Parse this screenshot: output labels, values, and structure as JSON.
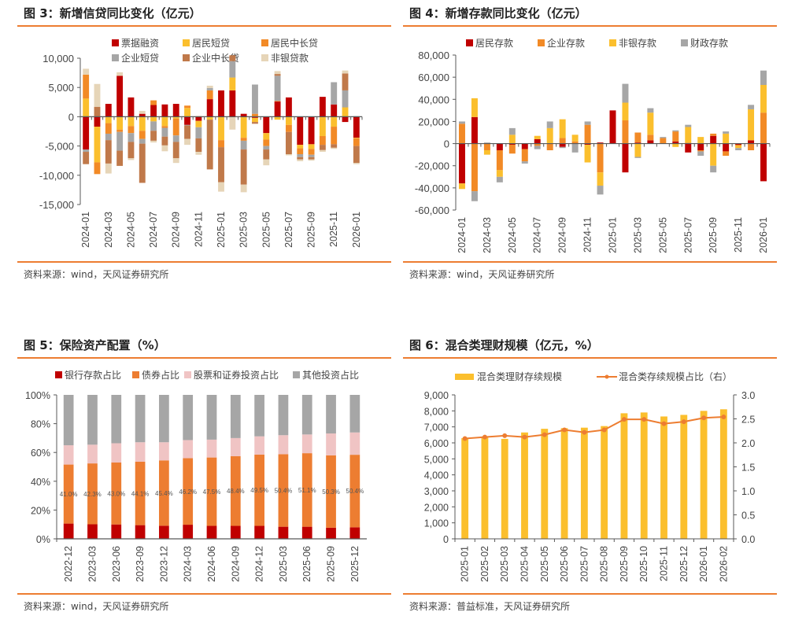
{
  "panels": {
    "p3": {
      "title": "图 3：新增信贷同比变化（亿元）",
      "source": "资料来源：wind，天风证券研究所"
    },
    "p4": {
      "title": "图 4：新增存款同比变化（亿元）",
      "source": "资料来源：wind，天风证券研究所"
    },
    "p5": {
      "title": "图 5：保险资产配置（%）",
      "source": "资料来源：wind，天风证券研究所"
    },
    "p6": {
      "title": "图 6：混合类理财规模（亿元，%）",
      "source": "资料来源：普益标准，天风证券研究所"
    }
  },
  "chart_data": [
    {
      "id": "fig3",
      "type": "bar",
      "stacked": true,
      "title": "新增信贷同比变化（亿元）",
      "ylim": [
        -15000,
        10000
      ],
      "yticks": [
        10000,
        5000,
        0,
        -5000,
        -10000,
        -15000
      ],
      "ytick_labels": [
        "10,000",
        "5,000",
        "0",
        "-5,000",
        "-10,000",
        "-15,000"
      ],
      "categories": [
        "2024-01",
        "2024-02",
        "2024-03",
        "2024-04",
        "2024-05",
        "2024-06",
        "2024-07",
        "2024-08",
        "2024-09",
        "2024-10",
        "2024-11",
        "2024-12",
        "2025-01",
        "2025-02",
        "2025-03",
        "2025-04",
        "2025-05",
        "2025-06",
        "2025-07",
        "2025-08",
        "2025-09",
        "2025-10",
        "2025-11",
        "2025-12",
        "2026-01"
      ],
      "xtick_labels": [
        "2024-01",
        "2024-03",
        "2024-05",
        "2024-07",
        "2024-09",
        "2024-11",
        "2025-01",
        "2025-03",
        "2025-05",
        "2025-07",
        "2025-09",
        "2025-11",
        "2026-01"
      ],
      "legend": "top",
      "series": [
        {
          "name": "票据融资",
          "color": "#c00000",
          "values": [
            -5600,
            -1700,
            2200,
            7000,
            3300,
            500,
            2000,
            2100,
            2200,
            -1400,
            -700,
            3000,
            4500,
            4500,
            500,
            -200,
            -2800,
            2600,
            3300,
            -4800,
            -4700,
            3400,
            2100,
            -900,
            -3600
          ]
        },
        {
          "name": "居民短贷",
          "color": "#fbbf2d",
          "values": [
            3100,
            -6100,
            -1100,
            -2200,
            -1600,
            -2400,
            -800,
            -1600,
            -300,
            1500,
            -1100,
            -500,
            -4000,
            2200,
            -3600,
            -700,
            -1100,
            -500,
            -1400,
            -600,
            -800,
            -3300,
            -1700,
            1600,
            -100
          ]
        },
        {
          "name": "居民中长贷",
          "color": "#f28a26",
          "values": [
            4100,
            -2000,
            -1800,
            -400,
            -1200,
            -1400,
            800,
            -300,
            -2900,
            400,
            100,
            1500,
            -1200,
            0,
            -500,
            500,
            -1100,
            100,
            -1200,
            -1000,
            -1000,
            -1500,
            -3000,
            0,
            -1300
          ]
        },
        {
          "name": "企业短贷",
          "color": "#a6a6a6",
          "values": [
            -400,
            0,
            -1100,
            -3200,
            -1500,
            -800,
            -1600,
            -1500,
            -1100,
            -100,
            -1900,
            400,
            0,
            2800,
            -1500,
            5000,
            -600,
            4300,
            0,
            -500,
            -400,
            0,
            3800,
            2900,
            100
          ]
        },
        {
          "name": "企业中长贷",
          "color": "#c0794a",
          "values": [
            -2100,
            1700,
            -4000,
            -2600,
            -2800,
            -6700,
            -1700,
            -1500,
            -2800,
            -2300,
            -2300,
            -8500,
            -6000,
            1000,
            -6000,
            -300,
            -1700,
            300,
            -3800,
            -400,
            -400,
            -900,
            -600,
            2900,
            -2900
          ]
        },
        {
          "name": "非银贷款",
          "color": "#e6d5b8",
          "values": [
            1000,
            3900,
            -1700,
            600,
            -300,
            500,
            -300,
            -1000,
            -800,
            -1000,
            -500,
            400,
            -1600,
            -2200,
            -1300,
            0,
            -1000,
            500,
            -200,
            -300,
            -200,
            -300,
            -200,
            500,
            -200
          ]
        }
      ]
    },
    {
      "id": "fig4",
      "type": "bar",
      "stacked": true,
      "title": "新增存款同比变化（亿元）",
      "ylim": [
        -60000,
        80000
      ],
      "yticks": [
        80000,
        60000,
        40000,
        20000,
        0,
        -20000,
        -40000,
        -60000
      ],
      "ytick_labels": [
        "80,000",
        "60,000",
        "40,000",
        "20,000",
        "0",
        "-20,000",
        "-40,000",
        "-60,000"
      ],
      "categories": [
        "2024-01",
        "2024-02",
        "2024-03",
        "2024-04",
        "2024-05",
        "2024-06",
        "2024-07",
        "2024-08",
        "2024-09",
        "2024-10",
        "2024-11",
        "2024-12",
        "2025-01",
        "2025-02",
        "2025-03",
        "2025-04",
        "2025-05",
        "2025-06",
        "2025-07",
        "2025-08",
        "2025-09",
        "2025-10",
        "2025-11",
        "2025-12",
        "2026-01"
      ],
      "xtick_labels": [
        "2024-01",
        "2024-03",
        "2024-05",
        "2024-07",
        "2024-09",
        "2024-11",
        "2025-01",
        "2025-03",
        "2025-05",
        "2025-07",
        "2025-09",
        "2025-11",
        "2026-01"
      ],
      "legend": "top",
      "series": [
        {
          "name": "居民存款",
          "color": "#c00000",
          "values": [
            -36000,
            24000,
            0,
            -6000,
            -1000,
            -5000,
            4000,
            0,
            -3000,
            0,
            -1000,
            1000,
            30000,
            -26000,
            1000,
            3000,
            0,
            2000,
            -8000,
            -6000,
            7000,
            -7000,
            -1000,
            3000,
            -34000
          ]
        },
        {
          "name": "企业存款",
          "color": "#f28a26",
          "values": [
            18000,
            -43000,
            -6000,
            -18000,
            -8000,
            -11000,
            -2000,
            -6000,
            5000,
            2000,
            17000,
            -26000,
            0,
            21000,
            9000,
            5000,
            5000,
            9000,
            1000,
            -1000,
            2000,
            -4000,
            -1000,
            -6000,
            28000
          ]
        },
        {
          "name": "非银存款",
          "color": "#fbbf2d",
          "values": [
            -5000,
            17000,
            -4000,
            -6000,
            8000,
            0,
            3000,
            14000,
            17000,
            6000,
            -16000,
            -12000,
            0,
            16000,
            -12000,
            20000,
            0,
            -3000,
            14000,
            6000,
            -20000,
            9000,
            -2000,
            28000,
            25000
          ]
        },
        {
          "name": "财政存款",
          "color": "#a6a6a6",
          "values": [
            2000,
            -9000,
            1000,
            -5000,
            6000,
            -2000,
            -3000,
            6000,
            -1000,
            -8000,
            3000,
            -8000,
            0,
            17000,
            -1000,
            4000,
            1000,
            1000,
            2000,
            -4000,
            -6000,
            2000,
            -2000,
            4000,
            13000
          ]
        }
      ]
    },
    {
      "id": "fig5",
      "type": "bar",
      "stacked": true,
      "title": "保险资产配置（%）",
      "ylim": [
        0,
        100
      ],
      "yticks": [
        100,
        80,
        60,
        40,
        20,
        0
      ],
      "ytick_labels": [
        "100%",
        "80%",
        "60%",
        "40%",
        "20%",
        "0%"
      ],
      "categories": [
        "2022-12",
        "2023-03",
        "2023-06",
        "2023-09",
        "2023-12",
        "2024-03",
        "2024-06",
        "2024-09",
        "2024-12",
        "2025-03",
        "2025-06",
        "2025-09",
        "2025-12"
      ],
      "legend": "top",
      "data_labels_series": "债券占比",
      "series": [
        {
          "name": "银行存款占比",
          "color": "#c00000",
          "values": [
            10.6,
            10.1,
            10.0,
            9.5,
            9.1,
            9.8,
            9.0,
            9.0,
            9.0,
            8.4,
            8.4,
            7.7,
            8.0
          ]
        },
        {
          "name": "债券占比",
          "color": "#ed7d31",
          "values": [
            41.0,
            42.3,
            43.0,
            44.1,
            45.4,
            46.2,
            47.5,
            48.4,
            49.5,
            50.4,
            51.1,
            50.3,
            50.4
          ]
        },
        {
          "name": "股票和证券投资占比",
          "color": "#f0c4c4",
          "values": [
            13.4,
            13.0,
            13.4,
            13.5,
            12.6,
            12.6,
            12.4,
            12.6,
            12.7,
            13.2,
            13.0,
            15.2,
            15.5
          ]
        },
        {
          "name": "其他投资占比",
          "color": "#a6a6a6",
          "values": [
            35.0,
            34.6,
            33.6,
            32.9,
            32.9,
            31.4,
            31.1,
            30.0,
            28.8,
            28.0,
            27.5,
            26.8,
            26.1
          ]
        }
      ]
    },
    {
      "id": "fig6",
      "type": "bar+line",
      "title": "混合类理财规模（亿元，%）",
      "categories": [
        "2025-01",
        "2025-02",
        "2025-03",
        "2025-04",
        "2025-05",
        "2025-06",
        "2025-07",
        "2025-08",
        "2025-09",
        "2025-10",
        "2025-11",
        "2025-12",
        "2026-01",
        "2026-02"
      ],
      "ylim_left": [
        0,
        9000
      ],
      "yticks_left": [
        9000,
        8000,
        7000,
        6000,
        5000,
        4000,
        3000,
        2000,
        1000,
        0
      ],
      "ytick_labels_left": [
        "9,000",
        "8,000",
        "7,000",
        "6,000",
        "5,000",
        "4,000",
        "3,000",
        "2,000",
        "1,000",
        "0"
      ],
      "ylim_right": [
        0,
        3.0
      ],
      "yticks_right": [
        3.0,
        2.5,
        2.0,
        1.5,
        1.0,
        0.5,
        0.0
      ],
      "ytick_labels_right": [
        "3.0",
        "2.5",
        "2.0",
        "1.5",
        "1.0",
        "0.5",
        "0.0"
      ],
      "legend": "top",
      "series": [
        {
          "name": "混合类理财存续规模",
          "type": "bar",
          "axis": "left",
          "color": "#fbbf2d",
          "values": [
            6300,
            6400,
            6250,
            6650,
            6880,
            6920,
            6950,
            7050,
            7850,
            7900,
            7650,
            7750,
            8000,
            8100
          ]
        },
        {
          "name": "混合类存续规模占比（右）",
          "type": "line",
          "axis": "right",
          "color": "#ed7d31",
          "values": [
            2.09,
            2.12,
            2.15,
            2.12,
            2.17,
            2.27,
            2.22,
            2.27,
            2.49,
            2.49,
            2.4,
            2.44,
            2.52,
            2.54
          ]
        }
      ]
    }
  ]
}
